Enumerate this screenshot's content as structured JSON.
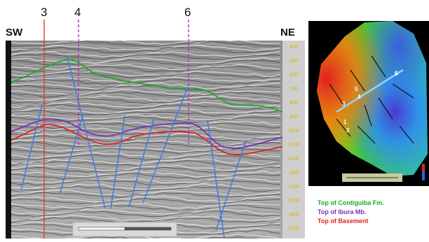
{
  "section": {
    "left_label": "SW",
    "right_label": "NE",
    "wells": [
      {
        "label": "3",
        "color": "#e53935",
        "style": "solid"
      },
      {
        "label": "4",
        "color": "#b52ab5",
        "style": "dashed"
      },
      {
        "label": "6",
        "color": "#b52ab5",
        "style": "dashed"
      }
    ],
    "depth_ticks": [
      "400",
      "500",
      "600",
      "700",
      "800",
      "900",
      "1000",
      "1100",
      "1200",
      "1300",
      "1400",
      "1500",
      "1600",
      "1700"
    ]
  },
  "map": {
    "labels": [
      "6",
      "5",
      "4",
      "3",
      "1",
      "2"
    ]
  },
  "legend": [
    {
      "label": "Top of Contiguiba Fm.",
      "color": "#1aaa2b"
    },
    {
      "label": "Top of Ibura Mb.",
      "color": "#7a2fc0"
    },
    {
      "label": "Top of Basement",
      "color": "#e02020"
    }
  ],
  "colors": {
    "contiguiba_horizon": "#1aaa2b",
    "ibura_horizon": "#7a2fc0",
    "basement_horizon": "#e02020",
    "faults": "#3d7fe0"
  }
}
